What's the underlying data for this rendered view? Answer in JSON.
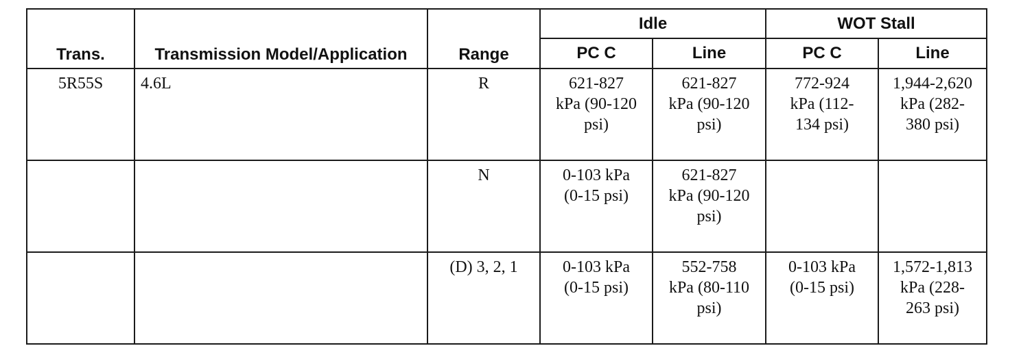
{
  "table": {
    "columns": [
      "Trans.",
      "Transmission Model/Application",
      "Range"
    ],
    "groups": [
      {
        "label": "Idle",
        "columns": [
          "PC C",
          "Line"
        ]
      },
      {
        "label": "WOT Stall",
        "columns": [
          "PC C",
          "Line"
        ]
      }
    ],
    "rows": [
      [
        "5R55S",
        "4.6L",
        "R",
        "621-827 kPa (90-120 psi)",
        "621-827 kPa (90-120 psi)",
        "772-924 kPa (112-134 psi)",
        "1,944-2,620 kPa (282-380 psi)"
      ],
      [
        null,
        null,
        "N",
        "0-103 kPa (0-15 psi)",
        "621-827 kPa (90-120 psi)",
        null,
        null
      ],
      [
        null,
        null,
        "(D) 3, 2, 1",
        "0-103 kPa (0-15 psi)",
        "552-758 kPa (80-110 psi)",
        "0-103 kPa (0-15 psi)",
        "1,572-1,813 kPa (228-263 psi)"
      ]
    ]
  }
}
